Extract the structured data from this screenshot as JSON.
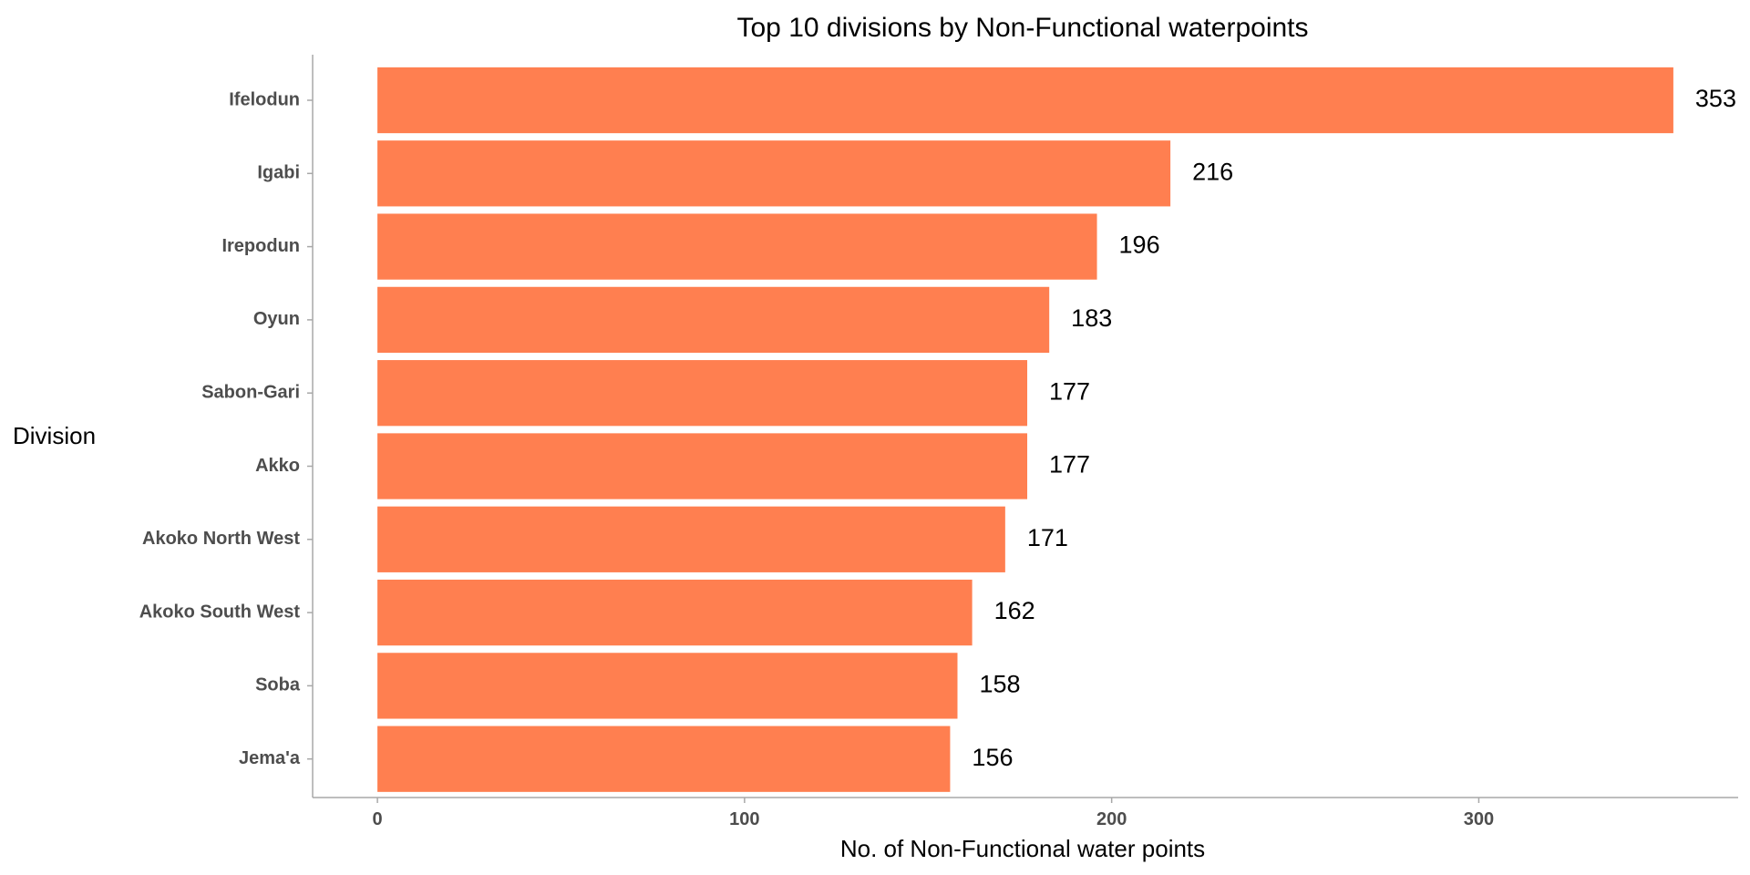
{
  "chart_data": {
    "type": "bar",
    "orientation": "horizontal",
    "title": "Top 10 divisions by Non-Functional waterpoints",
    "xlabel": "No. of Non-Functional water points",
    "ylabel": "Division",
    "categories": [
      "Ifelodun",
      "Igabi",
      "Irepodun",
      "Oyun",
      "Sabon-Gari",
      "Akko",
      "Akoko North West",
      "Akoko South West",
      "Soba",
      "Jema'a"
    ],
    "values": [
      353,
      216,
      196,
      183,
      177,
      177,
      171,
      162,
      158,
      156
    ],
    "xlim": [
      -17.65,
      370.65
    ],
    "xticks": [
      0,
      100,
      200,
      300
    ],
    "grid": false,
    "bar_color": "#FF7F50"
  }
}
